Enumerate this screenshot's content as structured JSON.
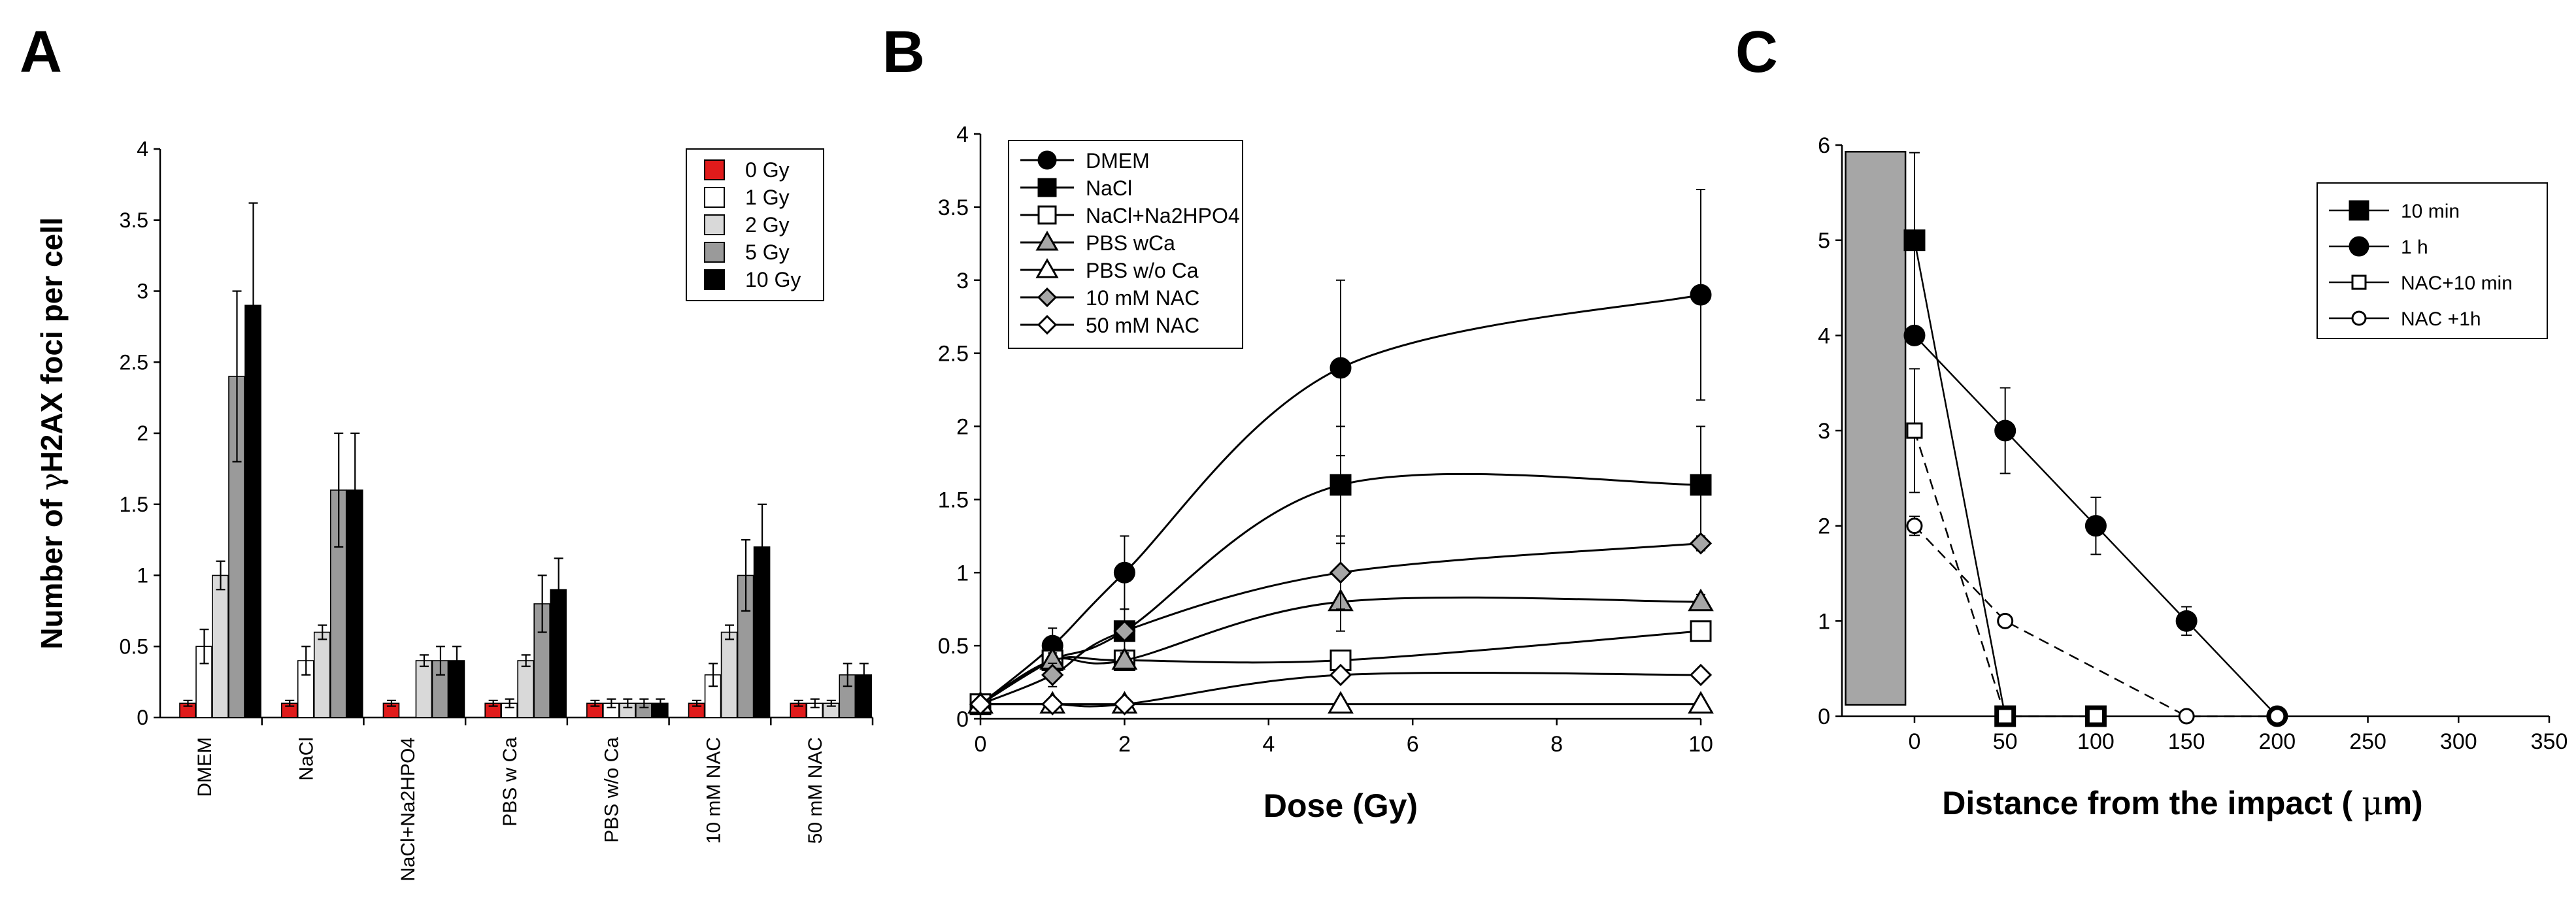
{
  "figure": {
    "panel_labels": [
      "A",
      "B",
      "C"
    ]
  },
  "chart_data": [
    {
      "panel": "A",
      "type": "bar",
      "title": "",
      "xlabel": "",
      "ylabel_prefix": "Number of ",
      "ylabel_greek": "γ",
      "ylabel_suffix": "H2AX foci per cell",
      "ylim": [
        0,
        4
      ],
      "yticks": [
        0,
        0.5,
        1,
        1.5,
        2,
        2.5,
        3,
        3.5,
        4
      ],
      "ytick_labels": [
        "0",
        "0.5",
        "1",
        "1.5",
        "2",
        "2.5",
        "3",
        "3.5",
        "4"
      ],
      "categories": [
        "DMEM",
        "NaCl",
        "NaCl+Na2HPO4",
        "PBS w Ca",
        "PBS w/o Ca",
        "10 mM NAC",
        "50 mM NAC"
      ],
      "legend_position": "top-right",
      "series": [
        {
          "name": "0 Gy",
          "color": "#e01b1b",
          "values": [
            0.1,
            0.1,
            0.1,
            0.1,
            0.1,
            0.1,
            0.1
          ],
          "errors": [
            0.02,
            0.02,
            0.02,
            0.02,
            0.02,
            0.02,
            0.02
          ]
        },
        {
          "name": "1 Gy",
          "color": "#ffffff",
          "values": [
            0.5,
            0.4,
            null,
            0.1,
            0.1,
            0.3,
            0.1
          ],
          "errors": [
            0.12,
            0.1,
            null,
            0.03,
            0.03,
            0.08,
            0.03
          ]
        },
        {
          "name": "2 Gy",
          "color": "#d9d9d9",
          "values": [
            1.0,
            0.6,
            0.4,
            0.4,
            0.1,
            0.6,
            0.1
          ],
          "errors": [
            0.1,
            0.05,
            0.04,
            0.04,
            0.03,
            0.05,
            0.02
          ]
        },
        {
          "name": "5 Gy",
          "color": "#9a9a9a",
          "values": [
            2.4,
            1.6,
            0.4,
            0.8,
            0.1,
            1.0,
            0.3
          ],
          "errors": [
            0.6,
            0.4,
            0.1,
            0.2,
            0.03,
            0.25,
            0.08
          ]
        },
        {
          "name": "10 Gy",
          "color": "#000000",
          "values": [
            2.9,
            1.6,
            0.4,
            0.9,
            0.1,
            1.2,
            0.3
          ],
          "errors": [
            0.72,
            0.4,
            0.1,
            0.22,
            0.03,
            0.3,
            0.08
          ]
        }
      ]
    },
    {
      "panel": "B",
      "type": "line",
      "title": "",
      "xlabel": "Dose (Gy)",
      "ylabel": "",
      "xlim": [
        0,
        10
      ],
      "ylim": [
        0,
        4
      ],
      "xticks": [
        0,
        2,
        4,
        6,
        8,
        10
      ],
      "xtick_labels": [
        "0",
        "2",
        "4",
        "6",
        "8",
        "10"
      ],
      "yticks": [
        0,
        0.5,
        1,
        1.5,
        2,
        2.5,
        3,
        3.5,
        4
      ],
      "ytick_labels": [
        "0",
        "0.5",
        "1",
        "1.5",
        "2",
        "2.5",
        "3",
        "3.5",
        "4"
      ],
      "legend_position": "top-left",
      "x": [
        0,
        1,
        2,
        5,
        10
      ],
      "series": [
        {
          "name": "DMEM",
          "marker": "circle",
          "fill": "#000000",
          "values": [
            0.1,
            0.5,
            1.0,
            2.4,
            2.9
          ],
          "errors": [
            0.02,
            0.12,
            0.25,
            0.6,
            0.72
          ]
        },
        {
          "name": "NaCl",
          "marker": "square",
          "fill": "#000000",
          "values": [
            0.1,
            0.4,
            0.6,
            1.6,
            1.6
          ],
          "errors": [
            0.02,
            0.1,
            0.15,
            0.4,
            0.4
          ]
        },
        {
          "name": "NaCl+Na2HPO4",
          "marker": "square",
          "fill": "#ffffff",
          "values": [
            0.1,
            0.4,
            0.4,
            0.4,
            0.6
          ],
          "errors": [
            0.02,
            0.05,
            0.05,
            0.05,
            0.05
          ]
        },
        {
          "name": "PBS wCa",
          "marker": "triangle",
          "fill": "#a6a6a6",
          "values": [
            0.1,
            0.4,
            0.4,
            0.8,
            0.8
          ],
          "errors": [
            0.02,
            0.05,
            0.05,
            0.2,
            0.05
          ]
        },
        {
          "name": "PBS w/o Ca",
          "marker": "triangle",
          "fill": "#ffffff",
          "values": [
            0.1,
            0.1,
            0.1,
            0.1,
            0.1
          ],
          "errors": [
            0.02,
            0.02,
            0.02,
            0.02,
            0.02
          ]
        },
        {
          "name": "10 mM NAC",
          "marker": "diamond",
          "fill": "#a6a6a6",
          "values": [
            0.1,
            0.3,
            0.6,
            1.0,
            1.2
          ],
          "errors": [
            0.02,
            0.08,
            0.06,
            0.25,
            0.05
          ]
        },
        {
          "name": "50 mM NAC",
          "marker": "diamond",
          "fill": "#ffffff",
          "values": [
            0.1,
            0.1,
            0.1,
            0.3,
            0.3
          ],
          "errors": [
            0.02,
            0.02,
            0.02,
            0.03,
            0.03
          ]
        }
      ]
    },
    {
      "panel": "C",
      "type": "line",
      "title": "",
      "xlabel_prefix": "Distance from the impact ( ",
      "xlabel_greek": "μ",
      "xlabel_suffix": "m)",
      "ylabel": "",
      "xlim": [
        -40,
        350
      ],
      "ylim": [
        0,
        6
      ],
      "xticks": [
        0,
        50,
        100,
        150,
        200,
        250,
        300,
        350
      ],
      "xtick_labels": [
        "0",
        "50",
        "100",
        "150",
        "200",
        "250",
        "300",
        "350"
      ],
      "yticks": [
        0,
        1,
        2,
        3,
        4,
        5,
        6
      ],
      "ytick_labels": [
        "0",
        "1",
        "2",
        "3",
        "4",
        "5",
        "6"
      ],
      "legend_position": "top-right",
      "impact_region": {
        "x0": -38,
        "x1": -5,
        "fill": "#a6a6a6"
      },
      "series": [
        {
          "name": "10 min",
          "marker": "square",
          "fill": "#000000",
          "dashed": false,
          "x": [
            0,
            50,
            100
          ],
          "values": [
            5.0,
            0.0,
            0.0
          ],
          "errors": [
            0.92,
            0,
            0
          ]
        },
        {
          "name": "1 h",
          "marker": "circle",
          "fill": "#000000",
          "dashed": false,
          "x": [
            0,
            50,
            100,
            150,
            200
          ],
          "values": [
            4.0,
            3.0,
            2.0,
            1.0,
            0.0
          ],
          "errors": [
            0.05,
            0.45,
            0.3,
            0.15,
            0
          ]
        },
        {
          "name": "NAC+10 min",
          "marker": "square",
          "fill": "#ffffff",
          "dashed": true,
          "x": [
            0,
            50,
            100
          ],
          "values": [
            3.0,
            0.0,
            0.0
          ],
          "errors": [
            0.65,
            0,
            0
          ]
        },
        {
          "name": "NAC +1h",
          "marker": "circle",
          "fill": "#ffffff",
          "dashed": true,
          "x": [
            0,
            50,
            150,
            200
          ],
          "values": [
            2.0,
            1.0,
            0.0,
            0.0
          ],
          "errors": [
            0.1,
            0.05,
            0,
            0
          ]
        }
      ]
    }
  ]
}
